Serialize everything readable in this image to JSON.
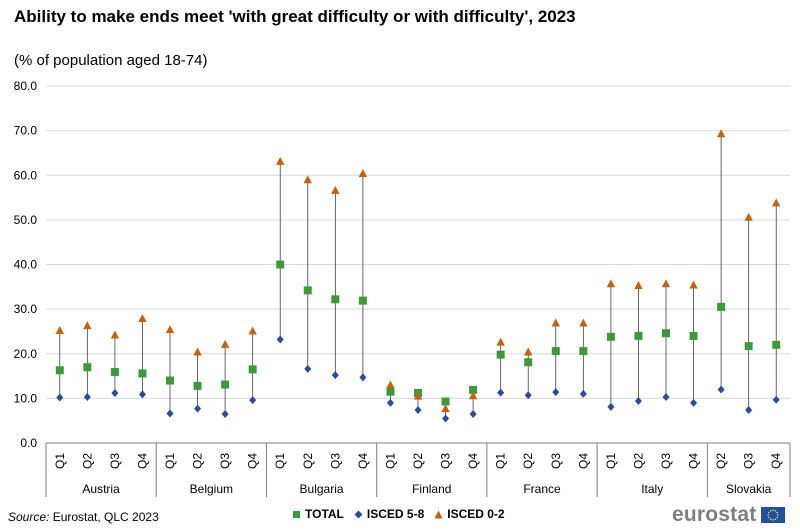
{
  "chart_data": {
    "type": "scatter",
    "title": "Ability to make ends meet 'with great difficulty or with difficulty', 2023",
    "subtitle": "(% of population aged 18-74)",
    "ylim": [
      0,
      80
    ],
    "yticks": [
      "0.0",
      "10.0",
      "20.0",
      "30.0",
      "40.0",
      "50.0",
      "60.0",
      "70.0",
      "80.0"
    ],
    "grid": true,
    "legend_position": "bottom",
    "groups": [
      {
        "name": "Austria",
        "categories": [
          "Q1",
          "Q2",
          "Q3",
          "Q4"
        ]
      },
      {
        "name": "Belgium",
        "categories": [
          "Q1",
          "Q2",
          "Q3",
          "Q4"
        ]
      },
      {
        "name": "Bulgaria",
        "categories": [
          "Q1",
          "Q2",
          "Q3",
          "Q4"
        ]
      },
      {
        "name": "Finland",
        "categories": [
          "Q1",
          "Q2",
          "Q3",
          "Q4"
        ]
      },
      {
        "name": "France",
        "categories": [
          "Q1",
          "Q2",
          "Q3",
          "Q4"
        ]
      },
      {
        "name": "Italy",
        "categories": [
          "Q1",
          "Q2",
          "Q3",
          "Q4"
        ]
      },
      {
        "name": "Slovakia",
        "categories": [
          "Q2",
          "Q3",
          "Q4"
        ]
      }
    ],
    "series": [
      {
        "name": "TOTAL",
        "marker": "square",
        "color": "#3a9b3a",
        "values": [
          16.3,
          17.0,
          15.9,
          15.6,
          14.0,
          12.8,
          13.1,
          16.5,
          40.0,
          34.2,
          32.2,
          31.9,
          11.5,
          11.2,
          9.3,
          11.9,
          19.8,
          18.1,
          20.6,
          20.6,
          23.8,
          24.0,
          24.6,
          24.0,
          30.5,
          21.7,
          22.0
        ]
      },
      {
        "name": "ISCED 5-8",
        "marker": "diamond",
        "color": "#2c4aa4",
        "values": [
          10.2,
          10.3,
          11.2,
          10.9,
          6.6,
          7.7,
          6.5,
          9.6,
          23.2,
          16.6,
          15.2,
          14.7,
          9.0,
          7.4,
          5.5,
          6.5,
          11.3,
          10.7,
          11.4,
          11.0,
          8.1,
          9.4,
          10.3,
          9.0,
          12.0,
          7.4,
          9.7
        ]
      },
      {
        "name": "ISCED 0-2",
        "marker": "triangle",
        "color": "#c8620a",
        "values": [
          25.2,
          26.3,
          24.2,
          27.9,
          25.4,
          20.4,
          22.1,
          25.1,
          63.1,
          59.0,
          56.6,
          60.4,
          13.0,
          10.5,
          7.7,
          10.6,
          22.6,
          20.4,
          26.9,
          26.9,
          35.7,
          35.3,
          35.7,
          35.4,
          69.3,
          50.6,
          53.8
        ]
      }
    ]
  },
  "footer": {
    "source_label": "Source:",
    "source_text": " Eurostat, QLC 2023",
    "brand": "eurostat"
  }
}
